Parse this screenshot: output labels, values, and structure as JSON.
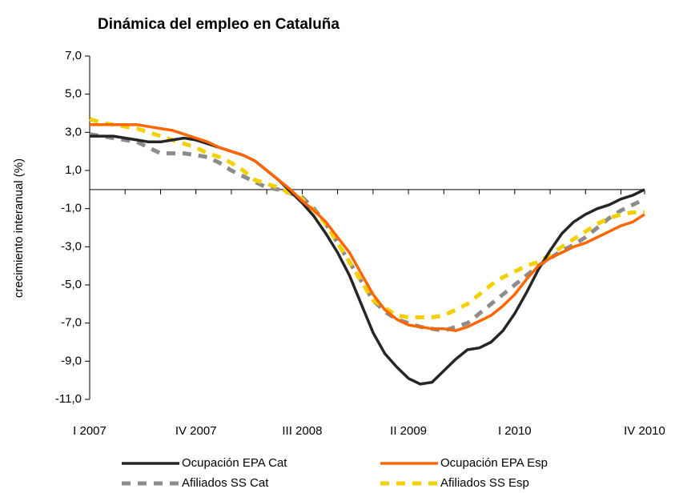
{
  "chart_data": {
    "type": "line",
    "title": "Dinámica del empleo en Cataluña",
    "y_label": "crecimiento interanual (%)",
    "categories": [
      "I 2007",
      null,
      null,
      null,
      null,
      null,
      null,
      null,
      null,
      "IV 2007",
      null,
      null,
      null,
      null,
      null,
      null,
      null,
      null,
      "III 2008",
      null,
      null,
      null,
      null,
      null,
      null,
      null,
      null,
      "II 2009",
      null,
      null,
      null,
      null,
      null,
      null,
      null,
      null,
      "I 2010",
      null,
      null,
      null,
      null,
      null,
      null,
      null,
      null,
      null,
      null,
      "IV 2010"
    ],
    "ylim": [
      -11,
      7
    ],
    "yticks": [
      {
        "value": 7,
        "label": "7,0"
      },
      {
        "value": 5,
        "label": "5,0"
      },
      {
        "value": 3,
        "label": "3,0"
      },
      {
        "value": 1,
        "label": "1,0"
      },
      {
        "value": -1,
        "label": "-1,0"
      },
      {
        "value": -3,
        "label": "-3,0"
      },
      {
        "value": -5,
        "label": "-5,0"
      },
      {
        "value": -7,
        "label": "-7,0"
      },
      {
        "value": -9,
        "label": "-9,0"
      },
      {
        "value": -11,
        "label": "-11,0"
      }
    ],
    "series": [
      {
        "name": "Ocupación EPA Cat",
        "color": "#262626",
        "dashed": false,
        "values": [
          2.8,
          2.8,
          2.8,
          2.7,
          2.6,
          2.5,
          2.5,
          2.6,
          2.7,
          2.6,
          2.4,
          2.2,
          2.0,
          1.8,
          1.5,
          1.0,
          0.5,
          -0.1,
          -0.7,
          -1.4,
          -2.3,
          -3.3,
          -4.5,
          -6.0,
          -7.5,
          -8.6,
          -9.3,
          -9.9,
          -10.2,
          -10.1,
          -9.5,
          -8.9,
          -8.4,
          -8.3,
          -8.0,
          -7.4,
          -6.5,
          -5.4,
          -4.2,
          -3.2,
          -2.3,
          -1.7,
          -1.3,
          -1.0,
          -0.8,
          -0.5,
          -0.3,
          0.0
        ]
      },
      {
        "name": "Ocupación EPA Esp",
        "color": "#ff6600",
        "dashed": false,
        "values": [
          3.4,
          3.4,
          3.4,
          3.4,
          3.4,
          3.3,
          3.2,
          3.1,
          2.9,
          2.7,
          2.5,
          2.2,
          2.0,
          1.8,
          1.5,
          1.0,
          0.5,
          0.0,
          -0.6,
          -1.1,
          -1.7,
          -2.5,
          -3.3,
          -4.4,
          -5.5,
          -6.3,
          -6.8,
          -7.1,
          -7.2,
          -7.3,
          -7.3,
          -7.4,
          -7.2,
          -6.9,
          -6.6,
          -6.1,
          -5.5,
          -4.7,
          -4.0,
          -3.6,
          -3.3,
          -3.0,
          -2.8,
          -2.5,
          -2.2,
          -1.9,
          -1.7,
          -1.3
        ]
      },
      {
        "name": "Afiliados SS Cat",
        "color": "#8c8c8c",
        "dashed": true,
        "values": [
          2.9,
          2.8,
          2.7,
          2.6,
          2.5,
          2.2,
          1.9,
          1.9,
          1.9,
          1.8,
          1.7,
          1.4,
          1.0,
          0.7,
          0.4,
          0.1,
          0.0,
          -0.2,
          -0.4,
          -1.0,
          -1.8,
          -2.8,
          -3.8,
          -4.8,
          -5.8,
          -6.4,
          -6.8,
          -7.0,
          -7.2,
          -7.3,
          -7.4,
          -7.2,
          -7.0,
          -6.5,
          -6.0,
          -5.5,
          -5.0,
          -4.5,
          -4.0,
          -3.6,
          -3.2,
          -2.9,
          -2.5,
          -2.0,
          -1.5,
          -1.1,
          -0.8,
          -0.5
        ]
      },
      {
        "name": "Afiliados SS Esp",
        "color": "#f5d000",
        "dashed": true,
        "values": [
          3.7,
          3.5,
          3.4,
          3.3,
          3.2,
          3.0,
          2.8,
          2.6,
          2.4,
          2.2,
          1.9,
          1.7,
          1.4,
          1.0,
          0.5,
          0.3,
          0.1,
          -0.2,
          -0.5,
          -1.1,
          -1.8,
          -2.8,
          -3.8,
          -4.8,
          -5.8,
          -6.2,
          -6.6,
          -6.7,
          -6.7,
          -6.7,
          -6.6,
          -6.3,
          -6.0,
          -5.5,
          -5.0,
          -4.6,
          -4.3,
          -4.0,
          -3.8,
          -3.4,
          -3.0,
          -2.6,
          -2.2,
          -1.8,
          -1.5,
          -1.3,
          -1.2,
          -1.2
        ]
      }
    ]
  }
}
